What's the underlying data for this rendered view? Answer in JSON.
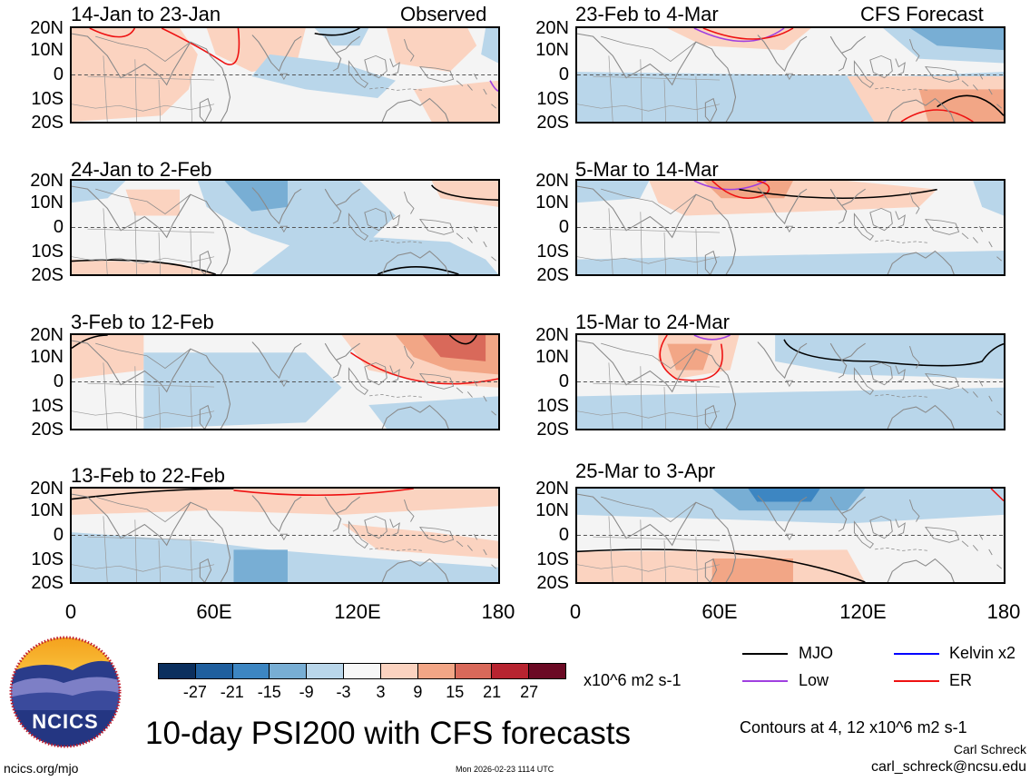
{
  "panels": {
    "obs1": {
      "period": "14-Jan to 23-Jan",
      "tag": "Observed"
    },
    "obs2": {
      "period": "24-Jan to 2-Feb"
    },
    "obs3": {
      "period": "3-Feb to 12-Feb"
    },
    "obs4": {
      "period": "13-Feb to 22-Feb"
    },
    "fc1": {
      "period": "23-Feb to 4-Mar",
      "tag": "CFS Forecast"
    },
    "fc2": {
      "period": "5-Mar to 14-Mar"
    },
    "fc3": {
      "period": "15-Mar to 24-Mar"
    },
    "fc4": {
      "period": "25-Mar to 3-Apr"
    }
  },
  "lat_labels": [
    "20N",
    "10N",
    "0",
    "10S",
    "20S"
  ],
  "lon_labels": [
    "0",
    "60E",
    "120E",
    "180"
  ],
  "colorbar": {
    "colors": [
      "#0b2f5e",
      "#1f5f9e",
      "#3d86c2",
      "#78aed4",
      "#b9d6ea",
      "#f7f7f7",
      "#fbd3c0",
      "#f2a686",
      "#d9695a",
      "#b72430",
      "#6b0a24"
    ],
    "labels": [
      "-27",
      "-21",
      "-15",
      "-9",
      "-3",
      "3",
      "9",
      "15",
      "21",
      "27"
    ],
    "units": "x10^6 m2 s-1"
  },
  "legend": {
    "mjo": {
      "label": "MJO",
      "color": "#000000"
    },
    "kelvin": {
      "label": "Kelvin x2",
      "color": "#0000ff"
    },
    "low": {
      "label": "Low",
      "color": "#a040e0"
    },
    "er": {
      "label": "ER",
      "color": "#ee1111"
    },
    "contours_note": "Contours at 4, 12 x10^6 m2 s-1"
  },
  "logo_text": "NCICS",
  "main_title": "10-day PSI200 with CFS forecasts",
  "footer": {
    "url": "ncics.org/mjo",
    "timestamp": "Mon 2026-02-23 1114 UTC",
    "author": "Carl Schreck",
    "email": "carl_schreck@ncsu.edu"
  }
}
